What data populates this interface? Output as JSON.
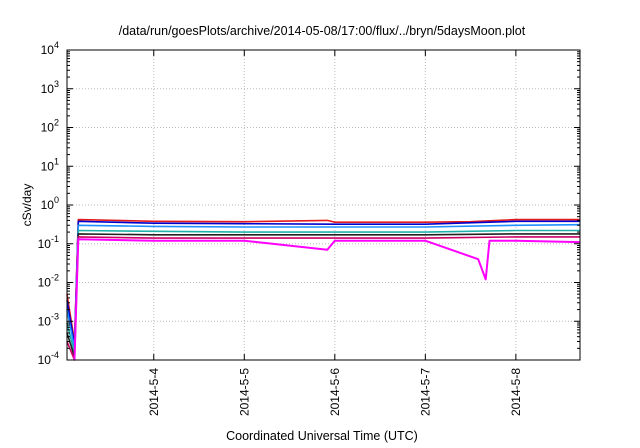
{
  "chart_data": {
    "type": "line",
    "title": "/data/run/goesPlots/archive/2014-05-08/17:00/flux/../bryn/5daysMoon.plot",
    "xlabel": "Coordinated Universal Time (UTC)",
    "ylabel": "cSv/day",
    "yscale": "log",
    "ylim": [
      0.0001,
      10000
    ],
    "xlim": [
      "2014-05-03 01:00",
      "2014-05-08 17:00"
    ],
    "grid": true,
    "y_ticks": [
      {
        "value": 0.0001,
        "base": "10",
        "exp": "-4"
      },
      {
        "value": 0.001,
        "base": "10",
        "exp": "-3"
      },
      {
        "value": 0.01,
        "base": "10",
        "exp": "-2"
      },
      {
        "value": 0.1,
        "base": "10",
        "exp": "-1"
      },
      {
        "value": 1,
        "base": "10",
        "exp": "0"
      },
      {
        "value": 10,
        "base": "10",
        "exp": "1"
      },
      {
        "value": 100,
        "base": "10",
        "exp": "2"
      },
      {
        "value": 1000,
        "base": "10",
        "exp": "3"
      },
      {
        "value": 10000,
        "base": "10",
        "exp": "4"
      }
    ],
    "x_ticks": [
      {
        "value": "2014-05-04 00:00",
        "label": "2014-5-4"
      },
      {
        "value": "2014-05-05 00:00",
        "label": "2014-5-5"
      },
      {
        "value": "2014-05-06 00:00",
        "label": "2014-5-6"
      },
      {
        "value": "2014-05-07 00:00",
        "label": "2014-5-7"
      },
      {
        "value": "2014-05-08 00:00",
        "label": "2014-5-8"
      }
    ],
    "series": [
      {
        "color": "#e41a1c",
        "points": [
          [
            "2014-05-03 01:00",
            0.005
          ],
          [
            "2014-05-03 03:00",
            0.0003
          ],
          [
            "2014-05-03 04:00",
            0.42
          ],
          [
            "2014-05-04 00:00",
            0.38
          ],
          [
            "2014-05-05 00:00",
            0.37
          ],
          [
            "2014-05-05 22:00",
            0.4
          ],
          [
            "2014-05-06 00:00",
            0.36
          ],
          [
            "2014-05-07 00:00",
            0.36
          ],
          [
            "2014-05-07 12:00",
            0.37
          ],
          [
            "2014-05-08 00:00",
            0.42
          ],
          [
            "2014-05-08 17:00",
            0.42
          ]
        ]
      },
      {
        "color": "#0000cc",
        "points": [
          [
            "2014-05-03 01:00",
            0.0035
          ],
          [
            "2014-05-03 03:00",
            0.00025
          ],
          [
            "2014-05-03 04:00",
            0.38
          ],
          [
            "2014-05-04 00:00",
            0.34
          ],
          [
            "2014-05-05 00:00",
            0.33
          ],
          [
            "2014-05-06 00:00",
            0.32
          ],
          [
            "2014-05-07 00:00",
            0.32
          ],
          [
            "2014-05-08 00:00",
            0.38
          ],
          [
            "2014-05-08 17:00",
            0.38
          ]
        ]
      },
      {
        "color": "#1e90ff",
        "points": [
          [
            "2014-05-03 01:00",
            0.002
          ],
          [
            "2014-05-03 03:00",
            0.0002
          ],
          [
            "2014-05-03 04:00",
            0.3
          ],
          [
            "2014-05-04 00:00",
            0.28
          ],
          [
            "2014-05-05 00:00",
            0.27
          ],
          [
            "2014-05-06 00:00",
            0.27
          ],
          [
            "2014-05-07 00:00",
            0.27
          ],
          [
            "2014-05-08 00:00",
            0.3
          ],
          [
            "2014-05-08 17:00",
            0.31
          ]
        ]
      },
      {
        "color": "#20b2aa",
        "points": [
          [
            "2014-05-03 01:00",
            0.0009
          ],
          [
            "2014-05-03 03:00",
            0.00015
          ],
          [
            "2014-05-03 04:00",
            0.22
          ],
          [
            "2014-05-04 00:00",
            0.21
          ],
          [
            "2014-05-05 00:00",
            0.2
          ],
          [
            "2014-05-06 00:00",
            0.2
          ],
          [
            "2014-05-07 00:00",
            0.2
          ],
          [
            "2014-05-08 00:00",
            0.22
          ],
          [
            "2014-05-08 17:00",
            0.22
          ]
        ]
      },
      {
        "color": "#222222",
        "points": [
          [
            "2014-05-03 01:00",
            0.0005
          ],
          [
            "2014-05-03 03:00",
            0.00012
          ],
          [
            "2014-05-03 04:00",
            0.18
          ],
          [
            "2014-05-04 00:00",
            0.17
          ],
          [
            "2014-05-05 00:00",
            0.17
          ],
          [
            "2014-05-06 00:00",
            0.17
          ],
          [
            "2014-05-07 00:00",
            0.17
          ],
          [
            "2014-05-08 00:00",
            0.18
          ],
          [
            "2014-05-08 17:00",
            0.18
          ]
        ]
      },
      {
        "color": "#cc0066",
        "points": [
          [
            "2014-05-03 01:00",
            0.0003
          ],
          [
            "2014-05-03 03:00",
            0.0001
          ],
          [
            "2014-05-03 04:00",
            0.15
          ],
          [
            "2014-05-04 00:00",
            0.14
          ],
          [
            "2014-05-05 00:00",
            0.14
          ],
          [
            "2014-05-06 00:00",
            0.14
          ],
          [
            "2014-05-07 00:00",
            0.14
          ],
          [
            "2014-05-08 00:00",
            0.15
          ],
          [
            "2014-05-08 17:00",
            0.15
          ]
        ]
      },
      {
        "color": "#ff00ff",
        "points": [
          [
            "2014-05-03 03:00",
            0.0001
          ],
          [
            "2014-05-03 04:00",
            0.13
          ],
          [
            "2014-05-04 00:00",
            0.12
          ],
          [
            "2014-05-05 00:00",
            0.12
          ],
          [
            "2014-05-05 22:00",
            0.07
          ],
          [
            "2014-05-06 00:00",
            0.12
          ],
          [
            "2014-05-07 00:00",
            0.12
          ],
          [
            "2014-05-07 14:00",
            0.04
          ],
          [
            "2014-05-07 16:00",
            0.012
          ],
          [
            "2014-05-07 17:00",
            0.12
          ],
          [
            "2014-05-08 00:00",
            0.12
          ],
          [
            "2014-05-08 17:00",
            0.11
          ]
        ]
      }
    ]
  }
}
